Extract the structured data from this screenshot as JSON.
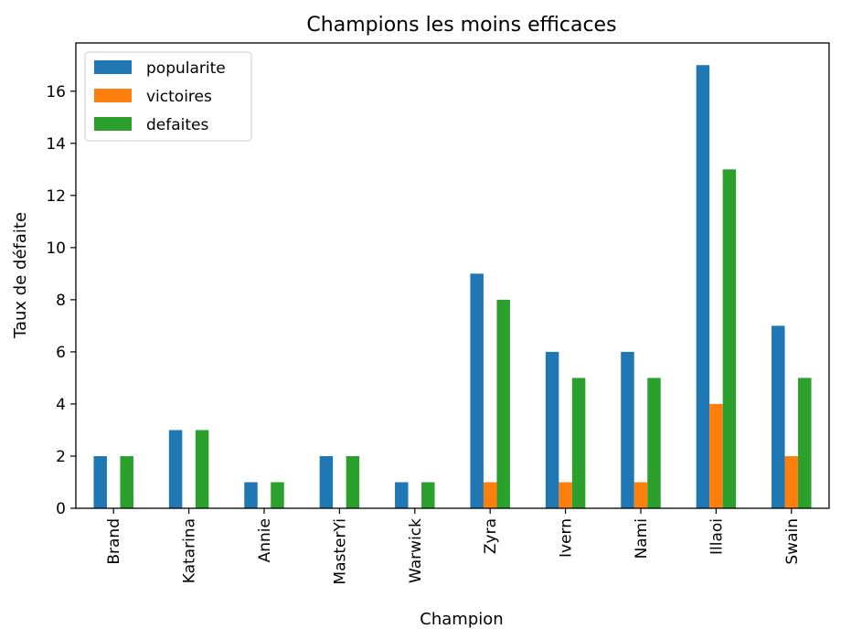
{
  "chart_data": {
    "type": "bar",
    "title": "Champions les moins efficaces",
    "xlabel": "Champion",
    "ylabel": "Taux de défaite",
    "categories": [
      "Brand",
      "Katarina",
      "Annie",
      "MasterYi",
      "Warwick",
      "Zyra",
      "Ivern",
      "Nami",
      "Illaoi",
      "Swain"
    ],
    "series": [
      {
        "name": "popularite",
        "color": "#1f77b4",
        "values": [
          2,
          3,
          1,
          2,
          1,
          9,
          6,
          6,
          17,
          7
        ]
      },
      {
        "name": "victoires",
        "color": "#ff7f0e",
        "values": [
          0,
          0,
          0,
          0,
          0,
          1,
          1,
          1,
          4,
          2
        ]
      },
      {
        "name": "defaites",
        "color": "#2ca02c",
        "values": [
          2,
          3,
          1,
          2,
          1,
          8,
          5,
          5,
          13,
          5
        ]
      }
    ],
    "yticks": [
      "0",
      "2",
      "4",
      "6",
      "8",
      "10",
      "12",
      "14",
      "16"
    ],
    "ylim": [
      0,
      17.85
    ],
    "legend_position": "top-left",
    "grid": false
  }
}
